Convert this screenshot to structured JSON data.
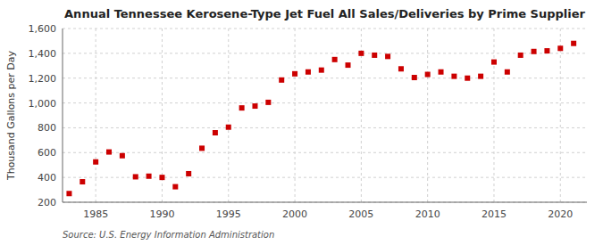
{
  "chart_data": {
    "type": "scatter",
    "title": "Annual Tennessee Kerosene-Type Jet Fuel All Sales/Deliveries by Prime Supplier",
    "ylabel": "Thousand Gallons per Day",
    "annotations": [
      "Source: U.S. Energy Information Administration"
    ],
    "x": [
      1983,
      1984,
      1985,
      1986,
      1987,
      1988,
      1989,
      1990,
      1991,
      1992,
      1993,
      1994,
      1995,
      1996,
      1997,
      1998,
      1999,
      2000,
      2001,
      2002,
      2003,
      2004,
      2005,
      2006,
      2007,
      2008,
      2009,
      2010,
      2011,
      2012,
      2013,
      2014,
      2015,
      2016,
      2017,
      2018,
      2019,
      2020,
      2021
    ],
    "values": [
      270,
      365,
      525,
      605,
      575,
      405,
      410,
      400,
      325,
      430,
      635,
      760,
      805,
      960,
      975,
      1005,
      1185,
      1235,
      1250,
      1265,
      1350,
      1305,
      1400,
      1385,
      1375,
      1275,
      1205,
      1230,
      1250,
      1215,
      1200,
      1215,
      1330,
      1250,
      1385,
      1415,
      1420,
      1440,
      1480
    ],
    "color": "#cc0000",
    "marker": "square",
    "xlim": [
      1982.5,
      2022
    ],
    "xticks": [
      1985,
      1990,
      1995,
      2000,
      2005,
      2010,
      2015,
      2020
    ],
    "ylim": [
      200,
      1600
    ],
    "yticks": [
      200,
      400,
      600,
      800,
      {
        "value": 1000,
        "label": "1,000"
      },
      {
        "value": 1200,
        "label": "1,200"
      },
      {
        "value": 1400,
        "label": "1,400"
      },
      {
        "value": 1600,
        "label": "1,600"
      }
    ],
    "grid": true
  }
}
